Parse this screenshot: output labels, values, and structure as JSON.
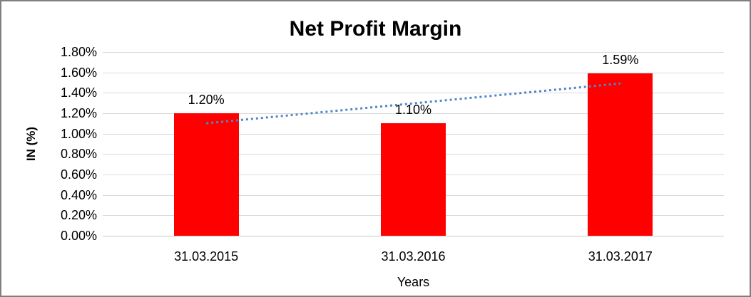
{
  "chart_data": {
    "type": "bar",
    "title": "Net Profit Margin",
    "xlabel": "Years",
    "ylabel": "IN (%)",
    "categories": [
      "31.03.2015",
      "31.03.2016",
      "31.03.2017"
    ],
    "values": [
      1.2,
      1.1,
      1.59
    ],
    "data_labels": [
      "1.20%",
      "1.10%",
      "1.59%"
    ],
    "unit": "%",
    "ylim": [
      0,
      1.8
    ],
    "ytick_step": 0.2,
    "ytick_labels": [
      "0.00%",
      "0.20%",
      "0.40%",
      "0.60%",
      "0.80%",
      "1.00%",
      "1.20%",
      "1.40%",
      "1.60%",
      "1.80%"
    ],
    "grid": true,
    "legend": false,
    "bar_color": "#FF0000",
    "gridline_color": "#D9D9D9",
    "trendline": {
      "type": "linear",
      "style": "dotted",
      "color": "#4E87C8",
      "endpoint_values_pct": [
        1.1,
        1.49
      ]
    }
  }
}
